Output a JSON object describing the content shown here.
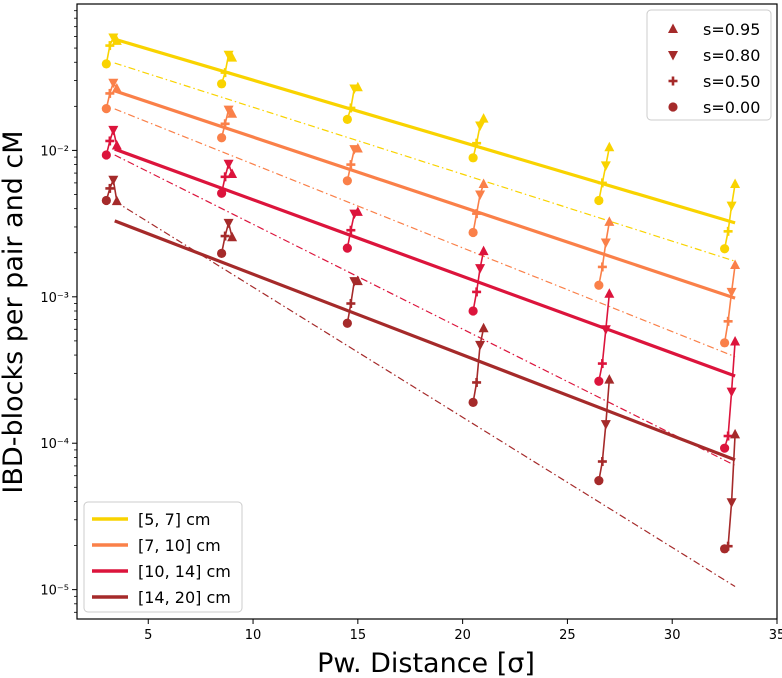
{
  "chart_data": {
    "type": "line",
    "title": "",
    "xlabel": "Pw. Distance [σ]",
    "ylabel": "IBD-blocks per pair and cM",
    "x_scale": "linear",
    "y_scale": "log",
    "xlim": [
      1.6,
      35
    ],
    "ylim": [
      6.3e-06,
      0.1
    ],
    "x_ticks": [
      5,
      10,
      15,
      20,
      25,
      30,
      35
    ],
    "x_tick_labels": [
      "5",
      "10",
      "15",
      "20",
      "25",
      "30",
      "35"
    ],
    "y_ticks": [
      1e-05,
      0.0001,
      0.001,
      0.01
    ],
    "y_tick_labels": [
      "10⁻⁵",
      "10⁻⁴",
      "10⁻³",
      "10⁻²"
    ],
    "grid": false,
    "bin_legend": {
      "position": "lower-left",
      "entries": [
        "[5, 7] cm",
        "[7, 10] cm",
        "[10, 14] cm",
        "[14, 20] cm"
      ]
    },
    "marker_legend": {
      "position": "upper-right",
      "entries": [
        {
          "label": "s=0.95",
          "marker": "triangle-up",
          "offset": 0.5
        },
        {
          "label": "s=0.80",
          "marker": "triangle-down",
          "offset": 0.333
        },
        {
          "label": "s=0.50",
          "marker": "plus",
          "offset": 0.167
        },
        {
          "label": "s=0.00",
          "marker": "circle",
          "offset": 0.0
        }
      ]
    },
    "x_positions": [
      3.0,
      8.5,
      14.5,
      20.5,
      26.5,
      32.5
    ],
    "colors": [
      "#f9d300",
      "#fa8049",
      "#dc143c",
      "#a52a2a"
    ],
    "bins": [
      {
        "name": "[5, 7] cm",
        "color": "#f9d300",
        "fit": {
          "x": [
            3.4,
            33.0
          ],
          "y": [
            0.0575,
            0.0032
          ]
        },
        "dashed": {
          "x": [
            3.4,
            33.0
          ],
          "y": [
            0.0395,
            0.00175
          ]
        },
        "points": [
          [
            0.039,
            0.052,
            0.059,
            0.056
          ],
          [
            0.0285,
            0.034,
            0.045,
            0.043
          ],
          [
            0.0163,
            0.0195,
            0.0265,
            0.027
          ],
          [
            0.0089,
            0.0112,
            0.0148,
            0.0165
          ],
          [
            0.00455,
            0.006,
            0.0079,
            0.0105
          ],
          [
            0.00213,
            0.0028,
            0.0042,
            0.0059
          ]
        ]
      },
      {
        "name": "[7, 10] cm",
        "color": "#fa8049",
        "fit": {
          "x": [
            3.4,
            33.0
          ],
          "y": [
            0.0255,
            0.00098
          ]
        },
        "dashed": {
          "x": [
            3.4,
            33.0
          ],
          "y": [
            0.0192,
            0.00039
          ]
        },
        "points": [
          [
            0.0193,
            0.0245,
            0.029,
            0.0265
          ],
          [
            0.0122,
            0.0152,
            0.019,
            0.0178
          ],
          [
            0.0062,
            0.008,
            0.0102,
            0.0103
          ],
          [
            0.00275,
            0.0037,
            0.005,
            0.0059
          ],
          [
            0.0012,
            0.0016,
            0.00235,
            0.00325
          ],
          [
            0.000485,
            0.00068,
            0.00108,
            0.00165
          ]
        ]
      },
      {
        "name": "[10, 14] cm",
        "color": "#dc143c",
        "fit": {
          "x": [
            3.4,
            33.0
          ],
          "y": [
            0.0102,
            0.000288
          ]
        },
        "dashed": {
          "x": [
            3.4,
            33.0
          ],
          "y": [
            0.0093,
            7.05e-05
          ]
        },
        "points": [
          [
            0.0093,
            0.0116,
            0.0138,
            0.0108
          ],
          [
            0.0051,
            0.0066,
            0.0081,
            0.0069
          ],
          [
            0.00215,
            0.00285,
            0.0037,
            0.0038
          ],
          [
            0.0008,
            0.00108,
            0.00157,
            0.00205
          ],
          [
            0.000265,
            0.00035,
            0.0006,
            0.00105
          ],
          [
            9.25e-05,
            0.000112,
            0.000225,
            0.000495
          ]
        ]
      },
      {
        "name": "[14, 20] cm",
        "color": "#a52a2a",
        "fit": {
          "x": [
            3.4,
            33.0
          ],
          "y": [
            0.0033,
            7.7e-05
          ]
        },
        "dashed": {
          "x": [
            3.4,
            33.0
          ],
          "y": [
            0.0045,
            1.05e-05
          ]
        },
        "points": [
          [
            0.00455,
            0.0055,
            0.0063,
            0.0045
          ],
          [
            0.00198,
            0.0026,
            0.0032,
            0.00255
          ],
          [
            0.00066,
            0.0009,
            0.00128,
            0.00128
          ],
          [
            0.00019,
            0.00026,
            0.00047,
            0.00061
          ],
          [
            5.55e-05,
            7.5e-05,
            0.000135,
            0.000272
          ],
          [
            1.9e-05,
            1.98e-05,
            3.95e-05,
            0.000115
          ]
        ]
      }
    ]
  }
}
